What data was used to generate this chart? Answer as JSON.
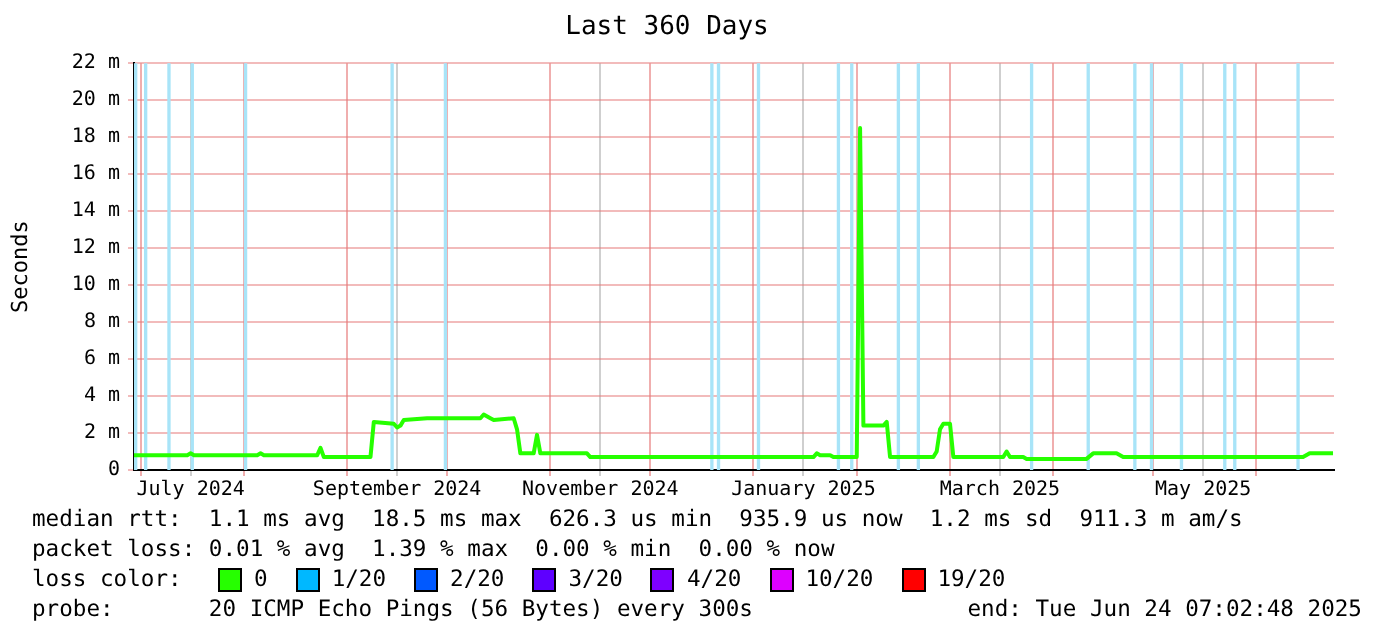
{
  "chart_data": {
    "type": "line",
    "title": "Last 360 Days",
    "ylabel": "Seconds",
    "legend_title": "loss color:",
    "legend": "bottom",
    "grid": true,
    "marker": "none",
    "line_style": "solid",
    "xlim": [
      "2024-06-29",
      "2025-06-24T07:02"
    ],
    "xticks": [
      {
        "value": "2024-07-01",
        "label": null
      },
      {
        "value": "2024-07-16",
        "label": "July 2024"
      },
      {
        "value": "2024-08-01",
        "label": null
      },
      {
        "value": "2024-09-01",
        "label": null
      },
      {
        "value": "2024-09-16",
        "label": "September 2024"
      },
      {
        "value": "2024-10-01",
        "label": null
      },
      {
        "value": "2024-11-01",
        "label": null
      },
      {
        "value": "2024-11-16",
        "label": "November 2024"
      },
      {
        "value": "2024-12-01",
        "label": null
      },
      {
        "value": "2025-01-01",
        "label": null
      },
      {
        "value": "2025-01-16",
        "label": "January 2025"
      },
      {
        "value": "2025-02-01",
        "label": null
      },
      {
        "value": "2025-03-01",
        "label": null
      },
      {
        "value": "2025-03-16",
        "label": "March 2025"
      },
      {
        "value": "2025-04-01",
        "label": null
      },
      {
        "value": "2025-05-01",
        "label": null
      },
      {
        "value": "2025-05-16",
        "label": "May 2025"
      },
      {
        "value": "2025-06-01",
        "label": null
      }
    ],
    "ylim": [
      0,
      22
    ],
    "yticks": [
      0,
      {
        "value": 2,
        "label": "2 m"
      },
      {
        "value": 4,
        "label": "4 m"
      },
      {
        "value": 6,
        "label": "6 m"
      },
      {
        "value": 8,
        "label": "8 m"
      },
      {
        "value": 10,
        "label": "10 m"
      },
      {
        "value": 12,
        "label": "12 m"
      },
      {
        "value": 14,
        "label": "14 m"
      },
      {
        "value": 16,
        "label": "16 m"
      },
      {
        "value": 18,
        "label": "18 m"
      },
      {
        "value": 20,
        "label": "20 m"
      },
      {
        "value": 22,
        "label": "22 m"
      }
    ],
    "series": [
      {
        "name": "0",
        "color": "#26ff00",
        "x": [
          "2024-06-29",
          "2024-07-15",
          "2024-07-16",
          "2024-07-17",
          "2024-08-05",
          "2024-08-06",
          "2024-08-07",
          "2024-08-23",
          "2024-08-24",
          "2024-08-25",
          "2024-09-08",
          "2024-09-09",
          "2024-09-15",
          "2024-09-16",
          "2024-09-17",
          "2024-09-18",
          "2024-09-25",
          "2024-10-11",
          "2024-10-12",
          "2024-10-14",
          "2024-10-15",
          "2024-10-21",
          "2024-10-22",
          "2024-10-23",
          "2024-10-27",
          "2024-10-28",
          "2024-10-29",
          "2024-11-12",
          "2024-11-13",
          "2024-12-20",
          "2025-01-19",
          "2025-01-20",
          "2025-01-21",
          "2025-01-24",
          "2025-01-25",
          "2025-02-01",
          "2025-02-02",
          "2025-02-03",
          "2025-02-09",
          "2025-02-10",
          "2025-02-11",
          "2025-02-24",
          "2025-02-25",
          "2025-02-26",
          "2025-02-27",
          "2025-03-01",
          "2025-03-02",
          "2025-03-17",
          "2025-03-18",
          "2025-03-19",
          "2025-03-23",
          "2025-03-24",
          "2025-04-11",
          "2025-04-13",
          "2025-04-20",
          "2025-04-22",
          "2025-06-15",
          "2025-06-17",
          "2025-06-24"
        ],
        "values": [
          0.8,
          0.8,
          0.9,
          0.8,
          0.8,
          0.9,
          0.8,
          0.8,
          1.2,
          0.7,
          0.7,
          2.6,
          2.5,
          2.3,
          2.4,
          2.7,
          2.8,
          2.8,
          3.0,
          2.8,
          2.7,
          2.8,
          2.2,
          0.9,
          0.9,
          1.9,
          0.9,
          0.9,
          0.7,
          0.7,
          0.7,
          0.9,
          0.8,
          0.8,
          0.7,
          0.7,
          18.5,
          2.4,
          2.4,
          2.6,
          0.7,
          0.7,
          1.0,
          2.2,
          2.5,
          2.5,
          0.7,
          0.7,
          1.0,
          0.7,
          0.7,
          0.6,
          0.6,
          0.9,
          0.9,
          0.7,
          0.7,
          0.9,
          0.9
        ]
      },
      {
        "name": "1/20",
        "color": "#00b8ff"
      },
      {
        "name": "2/20",
        "color": "#0059ff"
      },
      {
        "name": "3/20",
        "color": "#5e00ff"
      },
      {
        "name": "4/20",
        "color": "#7e00ff"
      },
      {
        "name": "10/20",
        "color": "#dd00ff"
      },
      {
        "name": "19/20",
        "color": "#ff0000"
      }
    ],
    "bands": [
      {
        "axis": "x",
        "from": "2024-06-29",
        "to": "2024-06-30",
        "color": "#a8e4f8"
      },
      {
        "axis": "x",
        "from": "2024-07-02",
        "to": "2024-07-03",
        "color": "#a8e4f8"
      },
      {
        "axis": "x",
        "from": "2024-07-09",
        "to": "2024-07-10",
        "color": "#a8e4f8"
      },
      {
        "axis": "x",
        "from": "2024-07-16",
        "to": "2024-07-17",
        "color": "#a8e4f8"
      },
      {
        "axis": "x",
        "from": "2024-08-01",
        "to": "2024-08-02",
        "color": "#a8e4f8"
      },
      {
        "axis": "x",
        "from": "2024-09-14",
        "to": "2024-09-15",
        "color": "#a8e4f8"
      },
      {
        "axis": "x",
        "from": "2024-09-30",
        "to": "2024-10-01",
        "color": "#a8e4f8"
      },
      {
        "axis": "x",
        "from": "2024-12-19",
        "to": "2024-12-20",
        "color": "#a8e4f8"
      },
      {
        "axis": "x",
        "from": "2024-12-21",
        "to": "2024-12-22",
        "color": "#a8e4f8"
      },
      {
        "axis": "x",
        "from": "2025-01-02",
        "to": "2025-01-03",
        "color": "#a8e4f8"
      },
      {
        "axis": "x",
        "from": "2025-01-26",
        "to": "2025-01-27",
        "color": "#a8e4f8"
      },
      {
        "axis": "x",
        "from": "2025-01-30",
        "to": "2025-01-31",
        "color": "#a8e4f8"
      },
      {
        "axis": "x",
        "from": "2025-02-13",
        "to": "2025-02-14",
        "color": "#a8e4f8"
      },
      {
        "axis": "x",
        "from": "2025-02-19",
        "to": "2025-02-20",
        "color": "#a8e4f8"
      },
      {
        "axis": "x",
        "from": "2025-03-25",
        "to": "2025-03-26",
        "color": "#a8e4f8"
      },
      {
        "axis": "x",
        "from": "2025-04-11",
        "to": "2025-04-12",
        "color": "#a8e4f8"
      },
      {
        "axis": "x",
        "from": "2025-04-25",
        "to": "2025-04-26",
        "color": "#a8e4f8"
      },
      {
        "axis": "x",
        "from": "2025-04-30",
        "to": "2025-05-01",
        "color": "#a8e4f8"
      },
      {
        "axis": "x",
        "from": "2025-05-09",
        "to": "2025-05-10",
        "color": "#a8e4f8"
      },
      {
        "axis": "x",
        "from": "2025-05-22",
        "to": "2025-05-23",
        "color": "#a8e4f8"
      },
      {
        "axis": "x",
        "from": "2025-05-25",
        "to": "2025-05-26",
        "color": "#a8e4f8"
      },
      {
        "axis": "x",
        "from": "2025-06-13",
        "to": "2025-06-14",
        "color": "#a8e4f8"
      }
    ],
    "annotations": [
      "median rtt:  1.1 ms avg  18.5 ms max  626.3 us min  935.9 us now  1.2 ms sd  911.3 m am/s",
      "packet loss: 0.01 % avg  1.39 % max  0.00 % min  0.00 % now",
      "probe:       20 ICMP Echo Pings (56 Bytes) every 300s",
      "end: Tue Jun 24 07:02:48 2025"
    ]
  }
}
